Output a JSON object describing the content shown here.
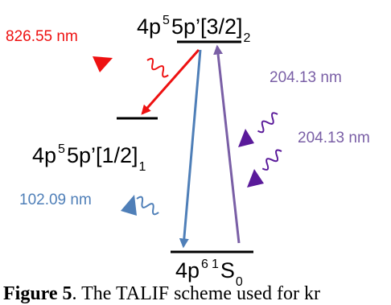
{
  "colors": {
    "red": "#ee1111",
    "blue": "#4f7fb8",
    "purple": "#7a5fa6",
    "dark_purple": "#5a1a9a",
    "level": "#000000"
  },
  "levels": {
    "top": {
      "config": "4p",
      "sup": "5",
      "rest": "5p’[3/2]",
      "sub": "2"
    },
    "middle": {
      "config": "4p",
      "sup": "5",
      "rest": "5p’[1/2]",
      "sub": "1"
    },
    "ground": {
      "config": "4p",
      "sup1": "6",
      "sup2": "1",
      "rest": "S",
      "sub": "0"
    }
  },
  "transitions": {
    "red": "826.55 nm",
    "blue": "102.09 nm",
    "purple_upper": "204.13 nm",
    "purple_lower": "204.13 nm"
  },
  "caption": {
    "bold": "Figure 5",
    "rest": ". The TALIF scheme used for kr"
  }
}
